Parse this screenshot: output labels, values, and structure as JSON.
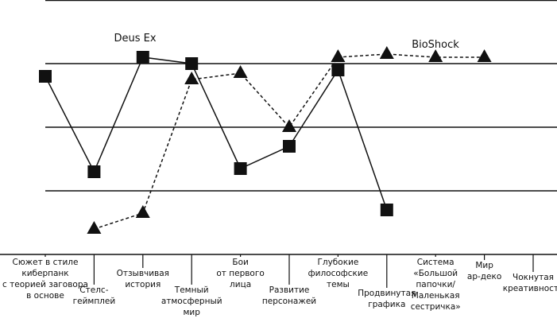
{
  "chart_data": {
    "type": "line",
    "categories": [
      "Сюжет в стиле\nкиберпанк\nс теорией заговора\nв основе",
      "Стелс-\nгеймплей",
      "Отзывчивая\nистория",
      "Темный\nатмосферный\nмир",
      "Бои\nот первого\nлица",
      "Развитие\nперсонажей",
      "Глубокие\nфилософские\nтемы",
      "Продвинутая\nграфика",
      "Система\n«Большой\nпапочки/\nМаленькая\nсестричка»",
      "Мир\nар-деко",
      "Чокнутая\nкреативность"
    ],
    "series": [
      {
        "name": "Deus Ex",
        "color": "#111111",
        "dashed": false,
        "marker": "square",
        "values": [
          2.8,
          1.3,
          3.1,
          3.0,
          1.35,
          1.7,
          2.9,
          0.7,
          null,
          null,
          null
        ]
      },
      {
        "name": "BioShock",
        "color": "#111111",
        "dashed": true,
        "marker": "triangle",
        "values": [
          null,
          0.4,
          0.65,
          2.75,
          2.85,
          2.0,
          3.1,
          3.15,
          3.1,
          3.1,
          null
        ]
      }
    ],
    "ylim": [
      0,
      4
    ],
    "yticks": [
      1,
      2,
      3,
      4
    ],
    "grid": true
  }
}
